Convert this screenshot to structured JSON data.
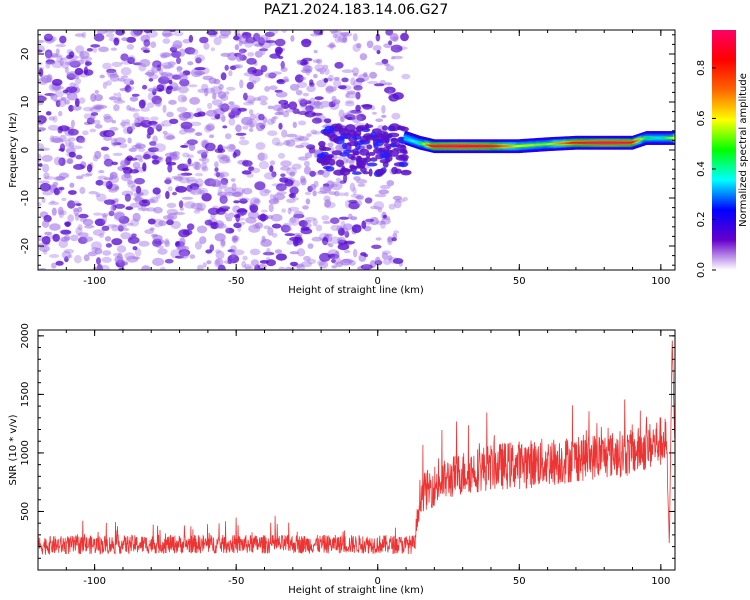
{
  "title": "PAZ1.2024.183.14.06.G27",
  "chart_data": [
    {
      "type": "heatmap",
      "panel": "spectrogram",
      "xlabel": "Height of straight line (km)",
      "ylabel": "Frequency (Hz)",
      "xlim": [
        -120,
        105
      ],
      "ylim": [
        -25,
        25
      ],
      "x_ticks": [
        -100,
        -50,
        0,
        50,
        100
      ],
      "y_ticks": [
        -20,
        -10,
        0,
        10,
        20
      ],
      "x_tick_labels": [
        "-100",
        "-50",
        "0",
        "50",
        "100"
      ],
      "y_tick_labels": [
        "-20",
        "-10",
        "0",
        "10",
        "20"
      ],
      "colorbar": {
        "label": "Normalized spectral amplitude",
        "range": [
          0,
          0.95
        ],
        "ticks": [
          0,
          0.2,
          0.4,
          0.6,
          0.8
        ],
        "tick_labels": [
          "0.0",
          "0.2",
          "0.4",
          "0.6",
          "0.8"
        ],
        "colormap": [
          "#ffffff",
          "#6600cc",
          "#0000ff",
          "#00ffff",
          "#00ff00",
          "#ffff00",
          "#ff6600",
          "#ff0000",
          "#ff0066"
        ]
      },
      "noise_region": {
        "x_range": [
          -120,
          10
        ],
        "amplitude": [
          0.05,
          0.25
        ]
      },
      "signal_ridge": {
        "x": [
          10,
          15,
          20,
          30,
          40,
          50,
          60,
          70,
          80,
          90,
          95,
          100,
          105
        ],
        "frequency": [
          2.5,
          1.5,
          0.8,
          0.8,
          0.8,
          0.8,
          1.2,
          1.5,
          1.5,
          1.5,
          2.5,
          2.5,
          2.5
        ],
        "amplitude": [
          0.3,
          0.4,
          0.9,
          0.95,
          0.9,
          0.6,
          0.55,
          0.85,
          0.95,
          0.9,
          0.5,
          0.4,
          0.6
        ]
      }
    },
    {
      "type": "line",
      "panel": "snr",
      "xlabel": "Height of straight line (km)",
      "ylabel": "SNR (10 * v/v)",
      "xlim": [
        -120,
        105
      ],
      "ylim": [
        0,
        2050
      ],
      "x_ticks": [
        -100,
        -50,
        0,
        50,
        100
      ],
      "y_ticks": [
        500,
        1000,
        1500,
        2000
      ],
      "x_tick_labels": [
        "-100",
        "-50",
        "0",
        "50",
        "100"
      ],
      "y_tick_labels": [
        "500",
        "1000",
        "1500",
        "2000"
      ],
      "color": "#ee3333",
      "series": [
        {
          "x": [
            -120,
            -100,
            -75,
            -50,
            -25,
            0,
            10,
            13,
            15,
            20,
            25,
            30,
            40,
            50,
            60,
            70,
            80,
            90,
            95,
            100,
            102,
            103,
            104,
            105
          ],
          "y": [
            210,
            215,
            220,
            220,
            220,
            220,
            215,
            220,
            650,
            720,
            780,
            830,
            880,
            900,
            920,
            950,
            980,
            1000,
            1050,
            1100,
            1100,
            200,
            2000,
            1000
          ],
          "noise_amplitude": [
            80,
            80,
            80,
            80,
            80,
            80,
            80,
            80,
            160,
            180,
            180,
            190,
            200,
            210,
            210,
            200,
            200,
            200,
            200,
            220,
            200,
            0,
            0,
            0
          ]
        }
      ]
    }
  ]
}
